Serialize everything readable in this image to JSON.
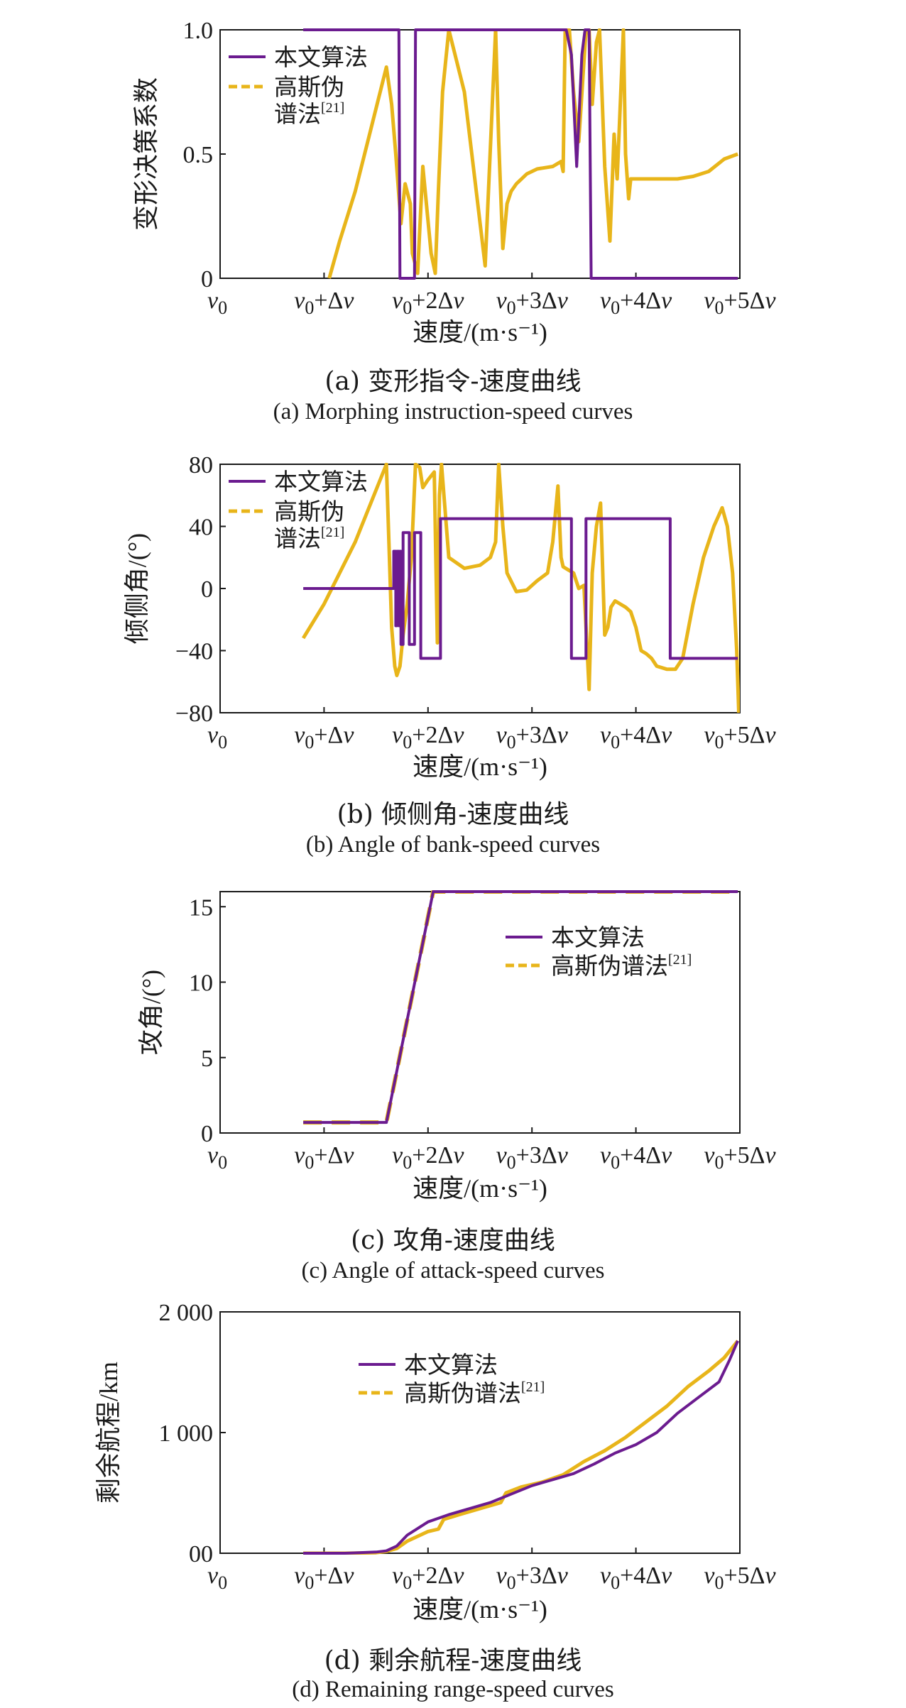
{
  "colors": {
    "ours": "#6b1b8f",
    "gauss": "#e8b51a",
    "axis": "#1a1a1a"
  },
  "legend_labels": {
    "ours": "本文算法",
    "gauss": "高斯伪谱法",
    "gauss_line1": "高斯伪",
    "gauss_line2": "谱法",
    "ref": "[21]"
  },
  "x_tick_labels": [
    "v0",
    "v0+Δv",
    "v0+2Δv",
    "v0+3Δv",
    "v0+4Δv",
    "v0+5Δv"
  ],
  "x_axis_label": "速度/(m·s⁻¹)",
  "captions": {
    "a_zh": "(a) 变形指令-速度曲线",
    "a_en": "(a) Morphing instruction-speed curves",
    "b_zh": "(b) 倾侧角-速度曲线",
    "b_en": "(b) Angle of bank-speed curves",
    "c_zh": "(c) 攻角-速度曲线",
    "c_en": "(c) Angle of attack-speed curves",
    "d_zh": "(d) 剩余航程-速度曲线",
    "d_en": "(d) Remaining range-speed curves"
  },
  "chart_data": [
    {
      "type": "line",
      "ylabel": "变形决策系数",
      "xlabel": "速度/(m·s⁻¹)",
      "xlim": [
        0,
        5
      ],
      "ylim": [
        0,
        1
      ],
      "y_ticks": [
        0,
        0.5,
        1
      ],
      "y_tick_labels": [
        "0",
        "0.5",
        "1.0"
      ],
      "legend": "top-left",
      "series": [
        {
          "name": "本文算法",
          "style": "solid",
          "x": [
            0.8,
            1.72,
            1.73,
            1.87,
            1.88,
            3.33,
            3.38,
            3.43,
            3.48,
            3.51,
            3.55,
            3.57,
            4.98
          ],
          "y": [
            1,
            1,
            0,
            0,
            1,
            1,
            0.9,
            0.45,
            0.9,
            1,
            1,
            0,
            0
          ]
        },
        {
          "name": "高斯伪谱法[21]",
          "style": "dashed",
          "x": [
            1.05,
            1.15,
            1.3,
            1.45,
            1.6,
            1.65,
            1.69,
            1.74,
            1.78,
            1.83,
            1.85,
            1.9,
            1.95,
            2.03,
            2.07,
            2.1,
            2.14,
            2.2,
            2.35,
            2.45,
            2.55,
            2.65,
            2.68,
            2.72,
            2.76,
            2.8,
            2.85,
            2.95,
            3.05,
            3.2,
            3.28,
            3.3,
            3.32,
            3.36,
            3.4,
            3.45,
            3.52,
            3.55,
            3.58,
            3.62,
            3.65,
            3.7,
            3.75,
            3.79,
            3.82,
            3.85,
            3.88,
            3.9,
            3.93,
            3.95,
            4.2,
            4.4,
            4.55,
            4.7,
            4.85,
            4.98
          ],
          "y": [
            0,
            0.15,
            0.35,
            0.6,
            0.85,
            0.7,
            0.5,
            0.22,
            0.38,
            0.3,
            0.1,
            0.02,
            0.45,
            0.1,
            0.02,
            0.35,
            0.75,
            1.0,
            0.75,
            0.4,
            0.05,
            1.0,
            0.55,
            0.12,
            0.3,
            0.35,
            0.38,
            0.42,
            0.44,
            0.45,
            0.47,
            0.43,
            1.0,
            1.0,
            0.75,
            0.55,
            1.0,
            1.0,
            0.7,
            0.95,
            1.0,
            0.45,
            0.15,
            0.58,
            0.4,
            0.7,
            1.0,
            0.5,
            0.32,
            0.4,
            0.4,
            0.4,
            0.41,
            0.43,
            0.48,
            0.5
          ]
        }
      ]
    },
    {
      "type": "line",
      "ylabel": "倾侧角/(°)",
      "xlabel": "速度/(m·s⁻¹)",
      "xlim": [
        0,
        5
      ],
      "ylim": [
        -80,
        80
      ],
      "y_ticks": [
        -80,
        -40,
        0,
        40,
        80
      ],
      "y_tick_labels": [
        "−80",
        "−40",
        "0",
        "40",
        "80"
      ],
      "legend": "top-left",
      "series": [
        {
          "name": "本文算法",
          "style": "solid",
          "x": [
            0.8,
            1.67,
            1.67,
            1.69,
            1.69,
            1.7,
            1.7,
            1.72,
            1.72,
            1.73,
            1.73,
            1.74,
            1.74,
            1.76,
            1.76,
            1.82,
            1.82,
            1.87,
            1.87,
            1.93,
            1.93,
            2.12,
            2.12,
            3.38,
            3.38,
            3.52,
            3.52,
            4.33,
            4.33,
            4.98
          ],
          "y": [
            0,
            0,
            24,
            24,
            -24,
            -24,
            24,
            24,
            -24,
            -24,
            24,
            24,
            -36,
            -36,
            36,
            36,
            -36,
            -36,
            36,
            36,
            -45,
            -45,
            45,
            45,
            -45,
            -45,
            45,
            45,
            -45,
            -45
          ]
        },
        {
          "name": "高斯伪谱法[21]",
          "style": "dashed",
          "x": [
            0.8,
            1.0,
            1.3,
            1.6,
            1.65,
            1.68,
            1.7,
            1.73,
            1.76,
            1.8,
            1.84,
            1.88,
            1.92,
            1.95,
            2.0,
            2.06,
            2.09,
            2.11,
            2.13,
            2.2,
            2.35,
            2.5,
            2.6,
            2.65,
            2.68,
            2.72,
            2.76,
            2.85,
            2.95,
            3.05,
            3.15,
            3.2,
            3.25,
            3.28,
            3.3,
            3.35,
            3.4,
            3.45,
            3.5,
            3.55,
            3.58,
            3.62,
            3.66,
            3.7,
            3.73,
            3.76,
            3.8,
            3.85,
            3.9,
            3.95,
            4.0,
            4.05,
            4.1,
            4.15,
            4.2,
            4.3,
            4.38,
            4.45,
            4.55,
            4.65,
            4.75,
            4.83,
            4.88,
            4.93,
            4.97,
            4.99
          ],
          "y": [
            -32,
            -10,
            30,
            80,
            -25,
            -50,
            -56,
            -50,
            -30,
            -10,
            20,
            80,
            78,
            65,
            70,
            75,
            -35,
            60,
            80,
            20,
            13,
            15,
            20,
            30,
            80,
            40,
            10,
            -2,
            -1,
            5,
            10,
            30,
            66,
            20,
            14,
            12,
            10,
            0,
            2,
            -65,
            10,
            40,
            55,
            -30,
            -25,
            -12,
            -8,
            -10,
            -12,
            -15,
            -25,
            -40,
            -42,
            -45,
            -50,
            -52,
            -52,
            -45,
            -10,
            20,
            40,
            52,
            40,
            10,
            -40,
            -80
          ]
        }
      ]
    },
    {
      "type": "line",
      "ylabel": "攻角/(°)",
      "xlabel": "速度/(m·s⁻¹)",
      "xlim": [
        0,
        5
      ],
      "ylim": [
        0,
        16
      ],
      "y_ticks": [
        0,
        5,
        10,
        15
      ],
      "y_tick_labels": [
        "0",
        "5",
        "10",
        "15"
      ],
      "legend": "top-right",
      "series": [
        {
          "name": "本文算法",
          "style": "solid",
          "x": [
            0.8,
            1.6,
            2.05,
            4.98
          ],
          "y": [
            0.7,
            0.7,
            16,
            16
          ]
        },
        {
          "name": "高斯伪谱法[21]",
          "style": "dashed",
          "x": [
            0.8,
            1.6,
            2.05,
            4.98
          ],
          "y": [
            0.7,
            0.7,
            16,
            16
          ]
        }
      ]
    },
    {
      "type": "line",
      "ylabel": "剩余航程/km",
      "xlabel": "速度/(m·s⁻¹)",
      "xlim": [
        0,
        5
      ],
      "ylim": [
        0,
        2000
      ],
      "y_ticks": [
        0,
        1000,
        2000
      ],
      "y_tick_labels": [
        "00",
        "1 000",
        "2 000"
      ],
      "legend": "top-center",
      "series": [
        {
          "name": "本文算法",
          "style": "solid",
          "x": [
            0.8,
            1.2,
            1.5,
            1.6,
            1.7,
            1.8,
            2.0,
            2.2,
            2.4,
            2.6,
            2.8,
            3.0,
            3.2,
            3.4,
            3.6,
            3.8,
            4.0,
            4.2,
            4.4,
            4.6,
            4.8,
            4.9,
            4.98
          ],
          "y": [
            0,
            0,
            10,
            20,
            60,
            150,
            260,
            320,
            370,
            420,
            490,
            560,
            610,
            660,
            740,
            830,
            900,
            1000,
            1160,
            1290,
            1420,
            1600,
            1760
          ]
        },
        {
          "name": "高斯伪谱法[21]",
          "style": "dashed",
          "x": [
            0.8,
            1.2,
            1.5,
            1.6,
            1.7,
            1.8,
            2.0,
            2.1,
            2.15,
            2.3,
            2.5,
            2.7,
            2.75,
            2.9,
            3.1,
            3.3,
            3.5,
            3.7,
            3.9,
            4.1,
            4.3,
            4.5,
            4.7,
            4.85,
            4.98
          ],
          "y": [
            0,
            0,
            5,
            15,
            40,
            100,
            180,
            200,
            280,
            320,
            370,
            420,
            500,
            550,
            590,
            650,
            760,
            850,
            960,
            1090,
            1220,
            1380,
            1510,
            1620,
            1760
          ]
        }
      ]
    }
  ]
}
